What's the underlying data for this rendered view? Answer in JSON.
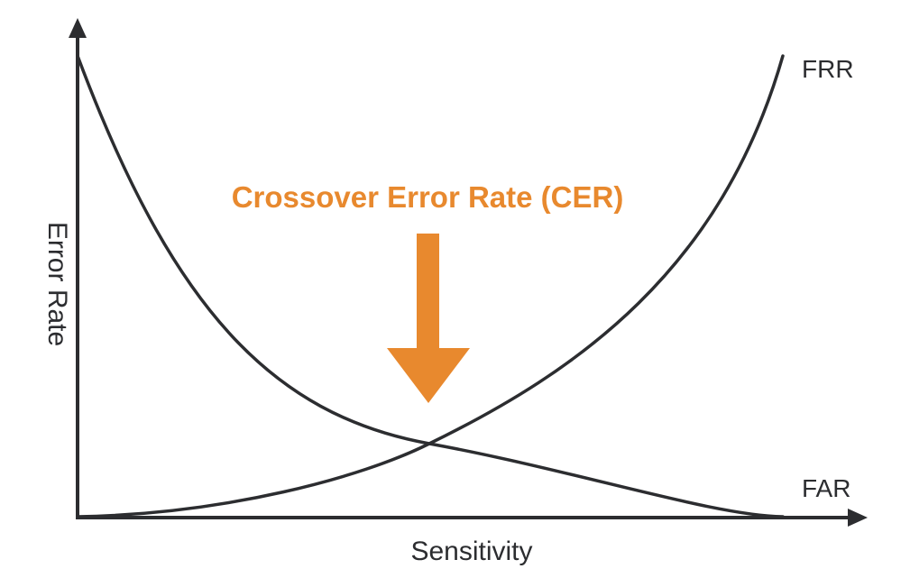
{
  "diagram": {
    "y_axis_label": "Error Rate",
    "x_axis_label": "Sensitivity",
    "curves": {
      "frr_label": "FRR",
      "far_label": "FAR"
    },
    "callout": {
      "text": "Crossover Error Rate (CER)"
    }
  },
  "colors": {
    "ink": "#2c2d30",
    "accent": "#e8892e",
    "background": "#ffffff"
  }
}
